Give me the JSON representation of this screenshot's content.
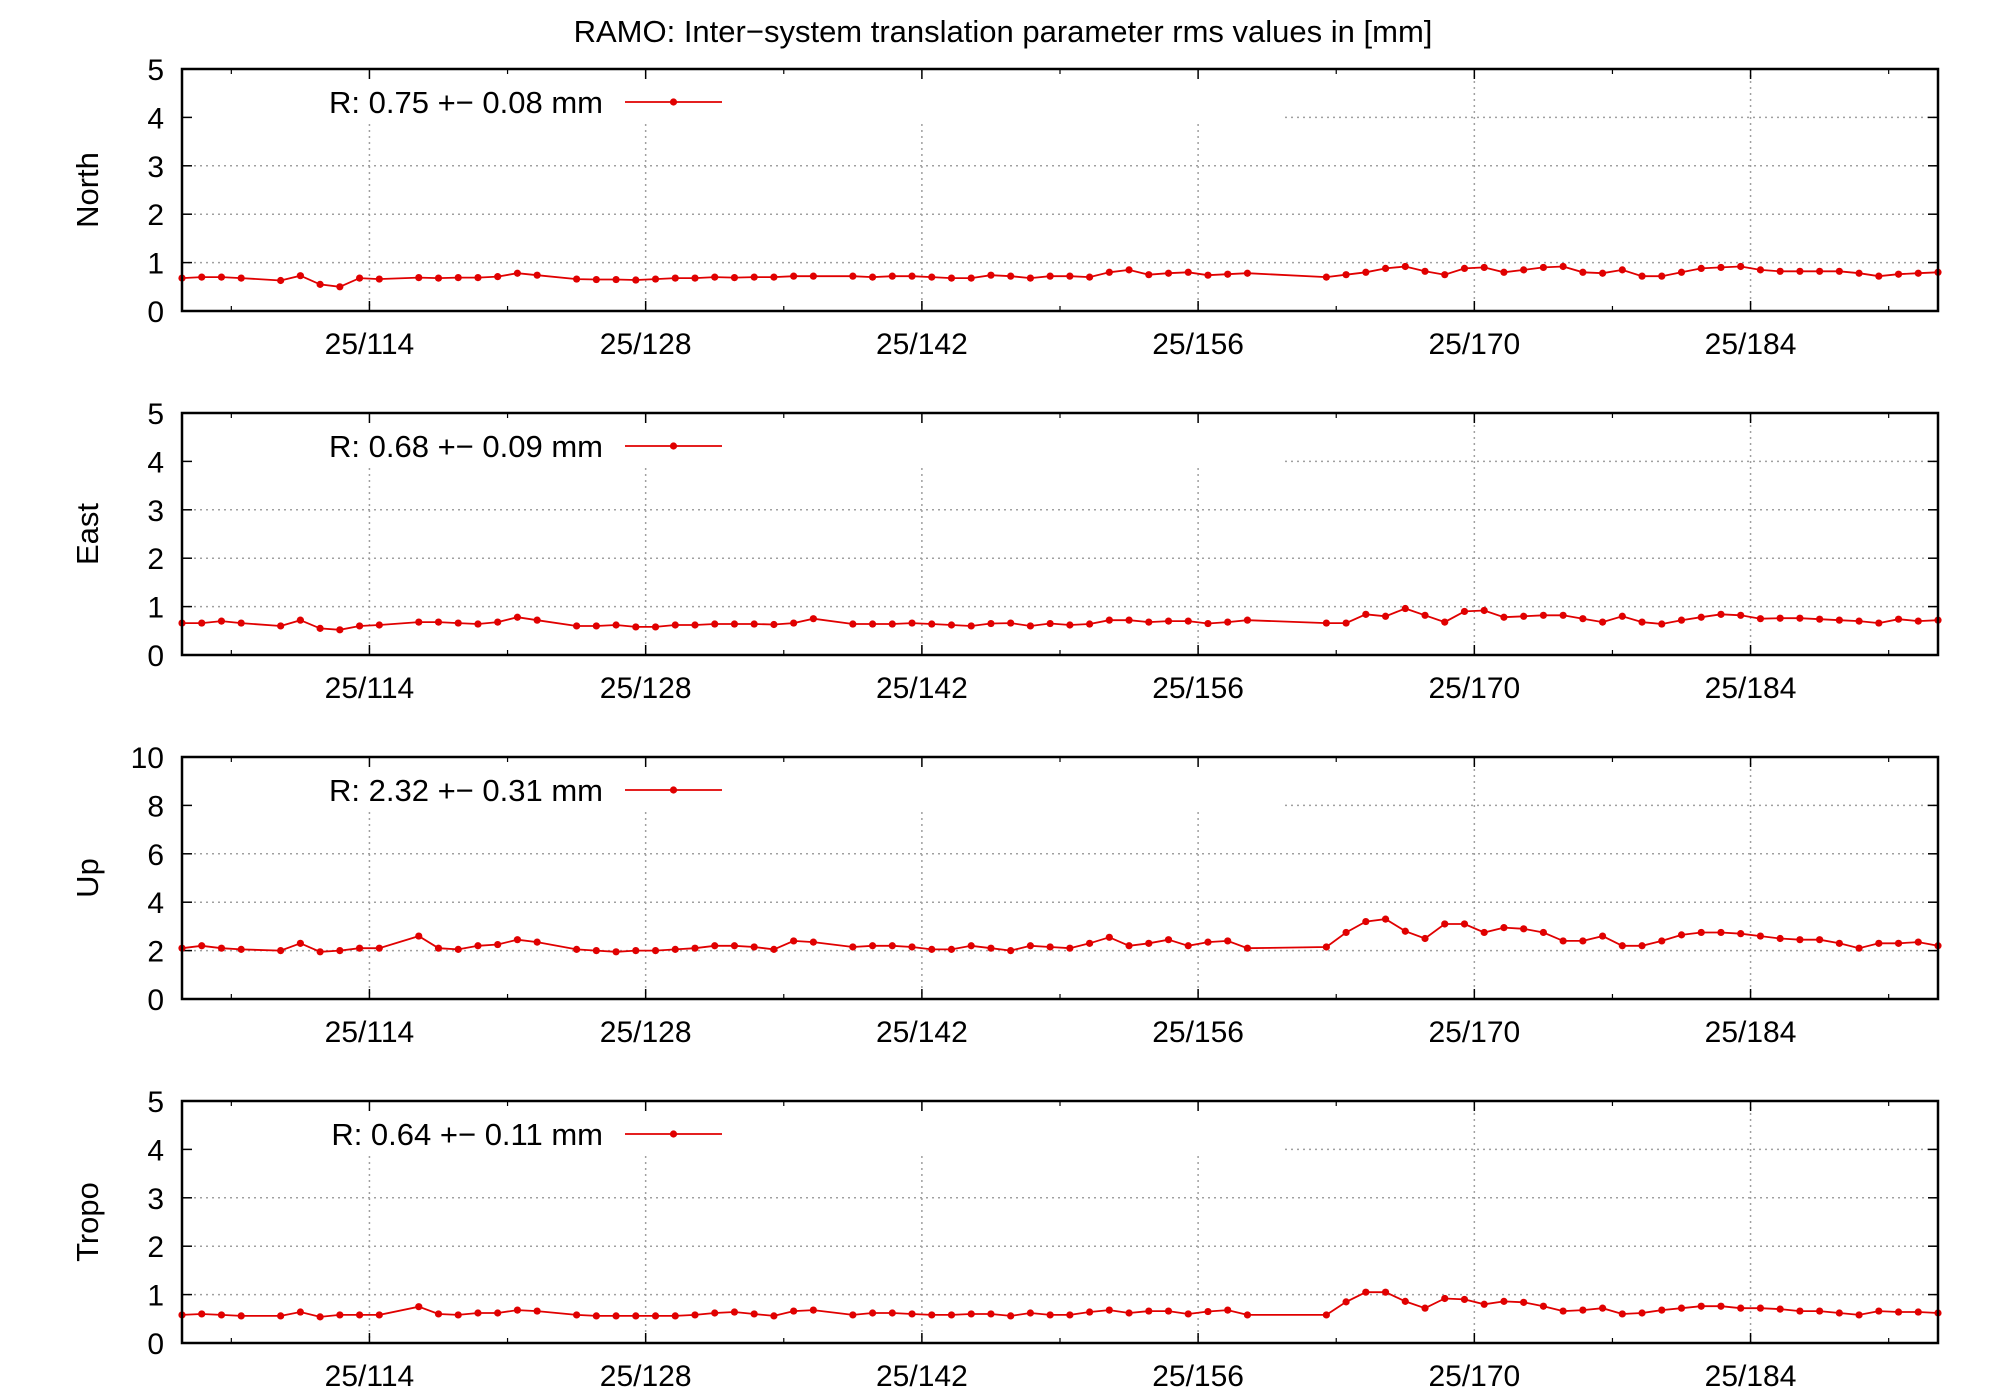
{
  "title": "RAMO: Inter−system translation parameter rms values in [mm]",
  "colors": {
    "series": "#e00000",
    "grid": "#a0a0a0",
    "frame": "#000000"
  },
  "chart_data": [
    {
      "type": "line",
      "ylabel": "North",
      "ylim": [
        0,
        5
      ],
      "yticks": [
        "0",
        "1",
        "2",
        "3",
        "4",
        "5"
      ],
      "xlim": [
        104.5,
        193.5
      ],
      "xticks": [
        114,
        128,
        142,
        156,
        170,
        184
      ],
      "xtick_labels": [
        "25/114",
        "25/128",
        "25/142",
        "25/156",
        "25/170",
        "25/184"
      ],
      "grid": true,
      "legend": {
        "position": "top-left",
        "label": "R:   0.75 +− 0.08 mm"
      },
      "series": [
        {
          "name": "R:   0.75 +− 0.08 mm",
          "x": [
            104.5,
            105.5,
            106.5,
            107.5,
            109.5,
            110.5,
            111.5,
            112.5,
            113.5,
            114.5,
            116.5,
            117.5,
            118.5,
            119.5,
            120.5,
            121.5,
            122.5,
            124.5,
            125.5,
            126.5,
            127.5,
            128.5,
            129.5,
            130.5,
            131.5,
            132.5,
            133.5,
            134.5,
            135.5,
            136.5,
            138.5,
            139.5,
            140.5,
            141.5,
            142.5,
            143.5,
            144.5,
            145.5,
            146.5,
            147.5,
            148.5,
            149.5,
            150.5,
            151.5,
            152.5,
            153.5,
            154.5,
            155.5,
            156.5,
            157.5,
            158.5,
            162.5,
            163.5,
            164.5,
            165.5,
            166.5,
            167.5,
            168.5,
            169.5,
            170.5,
            171.5,
            172.5,
            173.5,
            174.5,
            175.5,
            176.5,
            177.5,
            178.5,
            179.5,
            180.5,
            181.5,
            182.5,
            183.5,
            184.5,
            185.5,
            186.5,
            187.5,
            188.5,
            189.5,
            190.5,
            191.5,
            192.5,
            193.5
          ],
          "y": [
            0.68,
            0.7,
            0.7,
            0.68,
            0.63,
            0.73,
            0.55,
            0.5,
            0.68,
            0.66,
            0.69,
            0.68,
            0.69,
            0.69,
            0.71,
            0.78,
            0.74,
            0.66,
            0.65,
            0.65,
            0.64,
            0.66,
            0.68,
            0.68,
            0.7,
            0.69,
            0.7,
            0.7,
            0.72,
            0.72,
            0.72,
            0.7,
            0.72,
            0.72,
            0.7,
            0.68,
            0.68,
            0.74,
            0.72,
            0.68,
            0.72,
            0.72,
            0.7,
            0.8,
            0.85,
            0.75,
            0.78,
            0.8,
            0.74,
            0.76,
            0.78,
            0.7,
            0.75,
            0.8,
            0.88,
            0.92,
            0.82,
            0.75,
            0.88,
            0.9,
            0.8,
            0.85,
            0.9,
            0.92,
            0.8,
            0.78,
            0.85,
            0.72,
            0.72,
            0.8,
            0.88,
            0.9,
            0.92,
            0.85,
            0.82,
            0.82,
            0.82,
            0.82,
            0.78,
            0.72,
            0.76,
            0.78,
            0.8
          ]
        }
      ]
    },
    {
      "type": "line",
      "ylabel": "East",
      "ylim": [
        0,
        5
      ],
      "yticks": [
        "0",
        "1",
        "2",
        "3",
        "4",
        "5"
      ],
      "xlim": [
        104.5,
        193.5
      ],
      "xticks": [
        114,
        128,
        142,
        156,
        170,
        184
      ],
      "xtick_labels": [
        "25/114",
        "25/128",
        "25/142",
        "25/156",
        "25/170",
        "25/184"
      ],
      "grid": true,
      "legend": {
        "position": "top-left",
        "label": "R:   0.68 +− 0.09 mm"
      },
      "series": [
        {
          "name": "R:   0.68 +− 0.09 mm",
          "x": [
            104.5,
            105.5,
            106.5,
            107.5,
            109.5,
            110.5,
            111.5,
            112.5,
            113.5,
            114.5,
            116.5,
            117.5,
            118.5,
            119.5,
            120.5,
            121.5,
            122.5,
            124.5,
            125.5,
            126.5,
            127.5,
            128.5,
            129.5,
            130.5,
            131.5,
            132.5,
            133.5,
            134.5,
            135.5,
            136.5,
            138.5,
            139.5,
            140.5,
            141.5,
            142.5,
            143.5,
            144.5,
            145.5,
            146.5,
            147.5,
            148.5,
            149.5,
            150.5,
            151.5,
            152.5,
            153.5,
            154.5,
            155.5,
            156.5,
            157.5,
            158.5,
            162.5,
            163.5,
            164.5,
            165.5,
            166.5,
            167.5,
            168.5,
            169.5,
            170.5,
            171.5,
            172.5,
            173.5,
            174.5,
            175.5,
            176.5,
            177.5,
            178.5,
            179.5,
            180.5,
            181.5,
            182.5,
            183.5,
            184.5,
            185.5,
            186.5,
            187.5,
            188.5,
            189.5,
            190.5,
            191.5,
            192.5,
            193.5
          ],
          "y": [
            0.66,
            0.66,
            0.7,
            0.66,
            0.6,
            0.72,
            0.55,
            0.52,
            0.6,
            0.62,
            0.68,
            0.68,
            0.66,
            0.64,
            0.68,
            0.78,
            0.72,
            0.6,
            0.6,
            0.62,
            0.58,
            0.58,
            0.62,
            0.62,
            0.64,
            0.64,
            0.64,
            0.63,
            0.66,
            0.75,
            0.64,
            0.64,
            0.64,
            0.66,
            0.64,
            0.62,
            0.6,
            0.65,
            0.66,
            0.6,
            0.65,
            0.62,
            0.64,
            0.72,
            0.72,
            0.68,
            0.7,
            0.7,
            0.65,
            0.68,
            0.72,
            0.66,
            0.66,
            0.84,
            0.8,
            0.96,
            0.82,
            0.68,
            0.9,
            0.92,
            0.78,
            0.8,
            0.82,
            0.82,
            0.75,
            0.68,
            0.8,
            0.68,
            0.64,
            0.72,
            0.78,
            0.84,
            0.82,
            0.75,
            0.76,
            0.76,
            0.74,
            0.72,
            0.7,
            0.66,
            0.74,
            0.7,
            0.72
          ]
        }
      ]
    },
    {
      "type": "line",
      "ylabel": "Up",
      "ylim": [
        0,
        10
      ],
      "yticks": [
        "0",
        "2",
        "4",
        "6",
        "8",
        "10"
      ],
      "xlim": [
        104.5,
        193.5
      ],
      "xticks": [
        114,
        128,
        142,
        156,
        170,
        184
      ],
      "xtick_labels": [
        "25/114",
        "25/128",
        "25/142",
        "25/156",
        "25/170",
        "25/184"
      ],
      "grid": true,
      "legend": {
        "position": "top-left",
        "label": "R:   2.32 +− 0.31 mm"
      },
      "series": [
        {
          "name": "R:   2.32 +− 0.31 mm",
          "x": [
            104.5,
            105.5,
            106.5,
            107.5,
            109.5,
            110.5,
            111.5,
            112.5,
            113.5,
            114.5,
            116.5,
            117.5,
            118.5,
            119.5,
            120.5,
            121.5,
            122.5,
            124.5,
            125.5,
            126.5,
            127.5,
            128.5,
            129.5,
            130.5,
            131.5,
            132.5,
            133.5,
            134.5,
            135.5,
            136.5,
            138.5,
            139.5,
            140.5,
            141.5,
            142.5,
            143.5,
            144.5,
            145.5,
            146.5,
            147.5,
            148.5,
            149.5,
            150.5,
            151.5,
            152.5,
            153.5,
            154.5,
            155.5,
            156.5,
            157.5,
            158.5,
            162.5,
            163.5,
            164.5,
            165.5,
            166.5,
            167.5,
            168.5,
            169.5,
            170.5,
            171.5,
            172.5,
            173.5,
            174.5,
            175.5,
            176.5,
            177.5,
            178.5,
            179.5,
            180.5,
            181.5,
            182.5,
            183.5,
            184.5,
            185.5,
            186.5,
            187.5,
            188.5,
            189.5,
            190.5,
            191.5,
            192.5,
            193.5
          ],
          "y": [
            2.1,
            2.2,
            2.1,
            2.05,
            2.0,
            2.3,
            1.95,
            2.0,
            2.1,
            2.1,
            2.6,
            2.1,
            2.05,
            2.2,
            2.25,
            2.45,
            2.35,
            2.05,
            2.0,
            1.95,
            2.0,
            2.0,
            2.05,
            2.1,
            2.2,
            2.2,
            2.15,
            2.05,
            2.4,
            2.35,
            2.15,
            2.2,
            2.2,
            2.15,
            2.05,
            2.05,
            2.2,
            2.1,
            2.0,
            2.2,
            2.15,
            2.1,
            2.3,
            2.55,
            2.2,
            2.3,
            2.45,
            2.2,
            2.35,
            2.4,
            2.1,
            2.15,
            2.75,
            3.2,
            3.3,
            2.8,
            2.5,
            3.1,
            3.1,
            2.75,
            2.95,
            2.9,
            2.75,
            2.4,
            2.4,
            2.6,
            2.2,
            2.2,
            2.4,
            2.65,
            2.75,
            2.75,
            2.7,
            2.6,
            2.5,
            2.45,
            2.45,
            2.3,
            2.1,
            2.3,
            2.3,
            2.35,
            2.2
          ]
        }
      ]
    },
    {
      "type": "line",
      "ylabel": "Tropo",
      "ylim": [
        0,
        5
      ],
      "yticks": [
        "0",
        "1",
        "2",
        "3",
        "4",
        "5"
      ],
      "xlim": [
        104.5,
        193.5
      ],
      "xticks": [
        114,
        128,
        142,
        156,
        170,
        184
      ],
      "xtick_labels": [
        "25/114",
        "25/128",
        "25/142",
        "25/156",
        "25/170",
        "25/184"
      ],
      "grid": true,
      "legend": {
        "position": "top-left",
        "label": "R:   0.64 +− 0.11 mm"
      },
      "series": [
        {
          "name": "R:   0.64 +− 0.11 mm",
          "x": [
            104.5,
            105.5,
            106.5,
            107.5,
            109.5,
            110.5,
            111.5,
            112.5,
            113.5,
            114.5,
            116.5,
            117.5,
            118.5,
            119.5,
            120.5,
            121.5,
            122.5,
            124.5,
            125.5,
            126.5,
            127.5,
            128.5,
            129.5,
            130.5,
            131.5,
            132.5,
            133.5,
            134.5,
            135.5,
            136.5,
            138.5,
            139.5,
            140.5,
            141.5,
            142.5,
            143.5,
            144.5,
            145.5,
            146.5,
            147.5,
            148.5,
            149.5,
            150.5,
            151.5,
            152.5,
            153.5,
            154.5,
            155.5,
            156.5,
            157.5,
            158.5,
            162.5,
            163.5,
            164.5,
            165.5,
            166.5,
            167.5,
            168.5,
            169.5,
            170.5,
            171.5,
            172.5,
            173.5,
            174.5,
            175.5,
            176.5,
            177.5,
            178.5,
            179.5,
            180.5,
            181.5,
            182.5,
            183.5,
            184.5,
            185.5,
            186.5,
            187.5,
            188.5,
            189.5,
            190.5,
            191.5,
            192.5,
            193.5
          ],
          "y": [
            0.58,
            0.6,
            0.58,
            0.56,
            0.56,
            0.64,
            0.54,
            0.58,
            0.58,
            0.58,
            0.75,
            0.6,
            0.58,
            0.62,
            0.62,
            0.68,
            0.66,
            0.58,
            0.56,
            0.56,
            0.56,
            0.56,
            0.56,
            0.58,
            0.62,
            0.64,
            0.6,
            0.56,
            0.66,
            0.68,
            0.58,
            0.62,
            0.62,
            0.6,
            0.58,
            0.58,
            0.6,
            0.6,
            0.56,
            0.62,
            0.58,
            0.58,
            0.64,
            0.68,
            0.62,
            0.66,
            0.66,
            0.6,
            0.65,
            0.68,
            0.58,
            0.58,
            0.85,
            1.05,
            1.05,
            0.86,
            0.72,
            0.92,
            0.9,
            0.8,
            0.86,
            0.84,
            0.76,
            0.66,
            0.68,
            0.72,
            0.6,
            0.62,
            0.68,
            0.72,
            0.76,
            0.76,
            0.72,
            0.72,
            0.7,
            0.66,
            0.66,
            0.62,
            0.58,
            0.66,
            0.64,
            0.64,
            0.62
          ]
        }
      ]
    }
  ]
}
